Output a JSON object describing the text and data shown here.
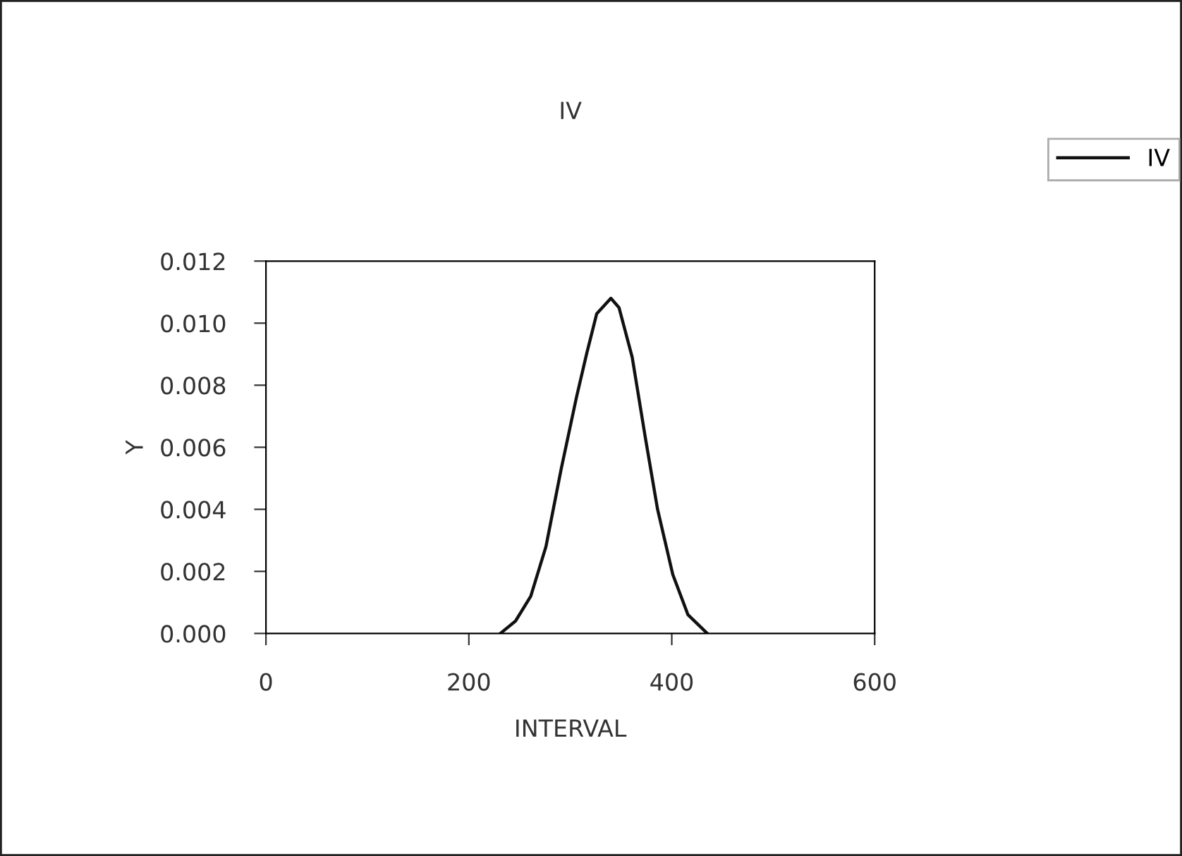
{
  "chart_data": {
    "type": "line",
    "title": "IV",
    "xlabel": "INTERVAL",
    "ylabel": "Y",
    "xlim": [
      0,
      600
    ],
    "xticks": [
      0,
      200,
      400,
      600
    ],
    "ylim": [
      0,
      0.012
    ],
    "yticks": [
      {
        "value": 0,
        "label": "0.000"
      },
      {
        "value": 0.002,
        "label": "0.002"
      },
      {
        "value": 0.004,
        "label": "0.004"
      },
      {
        "value": 0.006,
        "label": "0.006"
      },
      {
        "value": 0.008,
        "label": "0.008"
      },
      {
        "value": 0.01,
        "label": "0.010"
      },
      {
        "value": 0.012,
        "label": "0.012"
      }
    ],
    "grid": false,
    "legend": "top right",
    "marker": "none",
    "line_style": "solid",
    "series": [
      {
        "name": "IV",
        "color": "#111111",
        "x": [
          231,
          246,
          261,
          276,
          291,
          306,
          316,
          326,
          340,
          348,
          361,
          374,
          386,
          401,
          416,
          435
        ],
        "values": [
          0.0,
          0.0004,
          0.0012,
          0.0028,
          0.0053,
          0.0076,
          0.009,
          0.0103,
          0.0108,
          0.0105,
          0.0089,
          0.0063,
          0.004,
          0.0019,
          0.0006,
          0.0
        ]
      }
    ]
  }
}
